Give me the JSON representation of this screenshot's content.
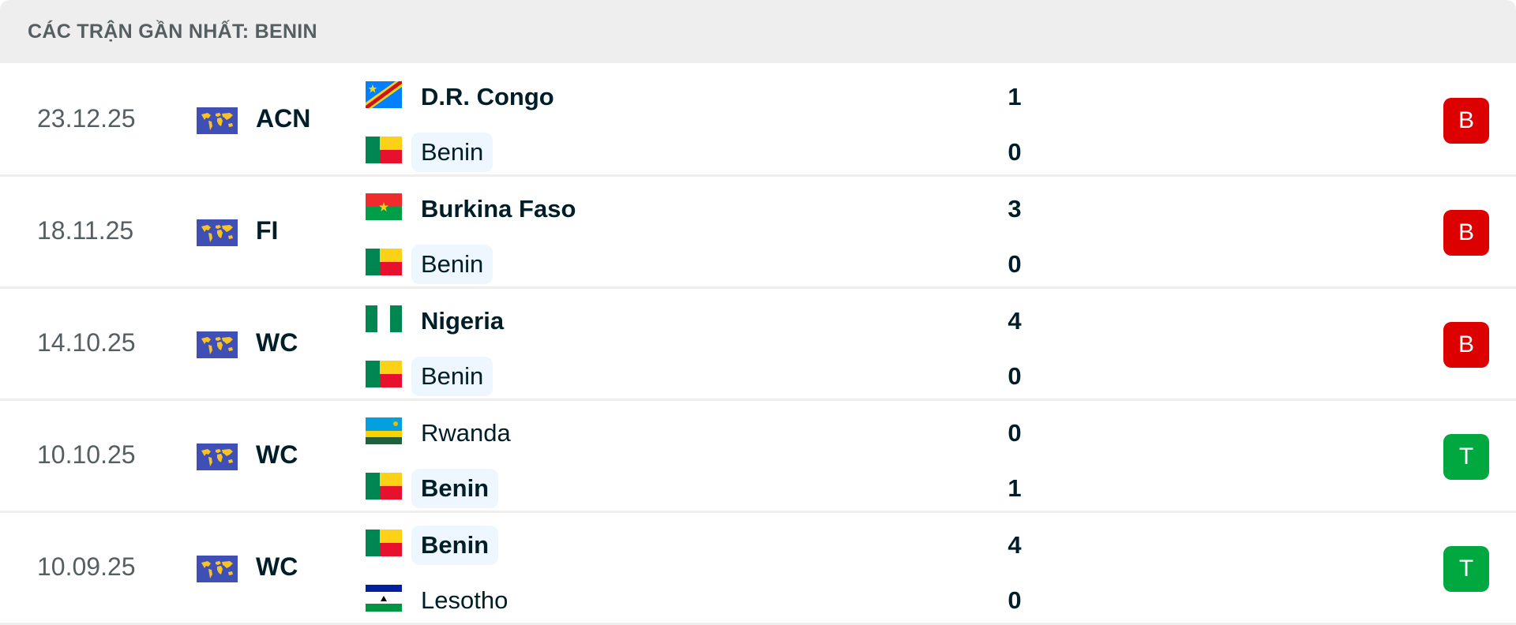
{
  "header": {
    "title": "CÁC TRẬN GẦN NHẤT: BENIN"
  },
  "colors": {
    "loss": "#dc0000",
    "win": "#00a83f",
    "highlight": "#eef6ff"
  },
  "matches": [
    {
      "date": "23.12.25",
      "competition": "ACN",
      "competition_icon": "world-icon",
      "home": {
        "name": "D.R. Congo",
        "flag": "cod",
        "score": "1",
        "bold": true,
        "highlight": false
      },
      "away": {
        "name": "Benin",
        "flag": "ben",
        "score": "0",
        "bold": false,
        "highlight": true
      },
      "result": "B"
    },
    {
      "date": "18.11.25",
      "competition": "FI",
      "competition_icon": "world-icon",
      "home": {
        "name": "Burkina Faso",
        "flag": "bfa",
        "score": "3",
        "bold": true,
        "highlight": false
      },
      "away": {
        "name": "Benin",
        "flag": "ben",
        "score": "0",
        "bold": false,
        "highlight": true
      },
      "result": "B"
    },
    {
      "date": "14.10.25",
      "competition": "WC",
      "competition_icon": "world-icon",
      "home": {
        "name": "Nigeria",
        "flag": "nga",
        "score": "4",
        "bold": true,
        "highlight": false
      },
      "away": {
        "name": "Benin",
        "flag": "ben",
        "score": "0",
        "bold": false,
        "highlight": true
      },
      "result": "B"
    },
    {
      "date": "10.10.25",
      "competition": "WC",
      "competition_icon": "world-icon",
      "home": {
        "name": "Rwanda",
        "flag": "rwa",
        "score": "0",
        "bold": false,
        "highlight": false
      },
      "away": {
        "name": "Benin",
        "flag": "ben",
        "score": "1",
        "bold": true,
        "highlight": true
      },
      "result": "T"
    },
    {
      "date": "10.09.25",
      "competition": "WC",
      "competition_icon": "world-icon",
      "home": {
        "name": "Benin",
        "flag": "ben",
        "score": "4",
        "bold": true,
        "highlight": true
      },
      "away": {
        "name": "Lesotho",
        "flag": "lso",
        "score": "0",
        "bold": false,
        "highlight": false
      },
      "result": "T"
    }
  ]
}
